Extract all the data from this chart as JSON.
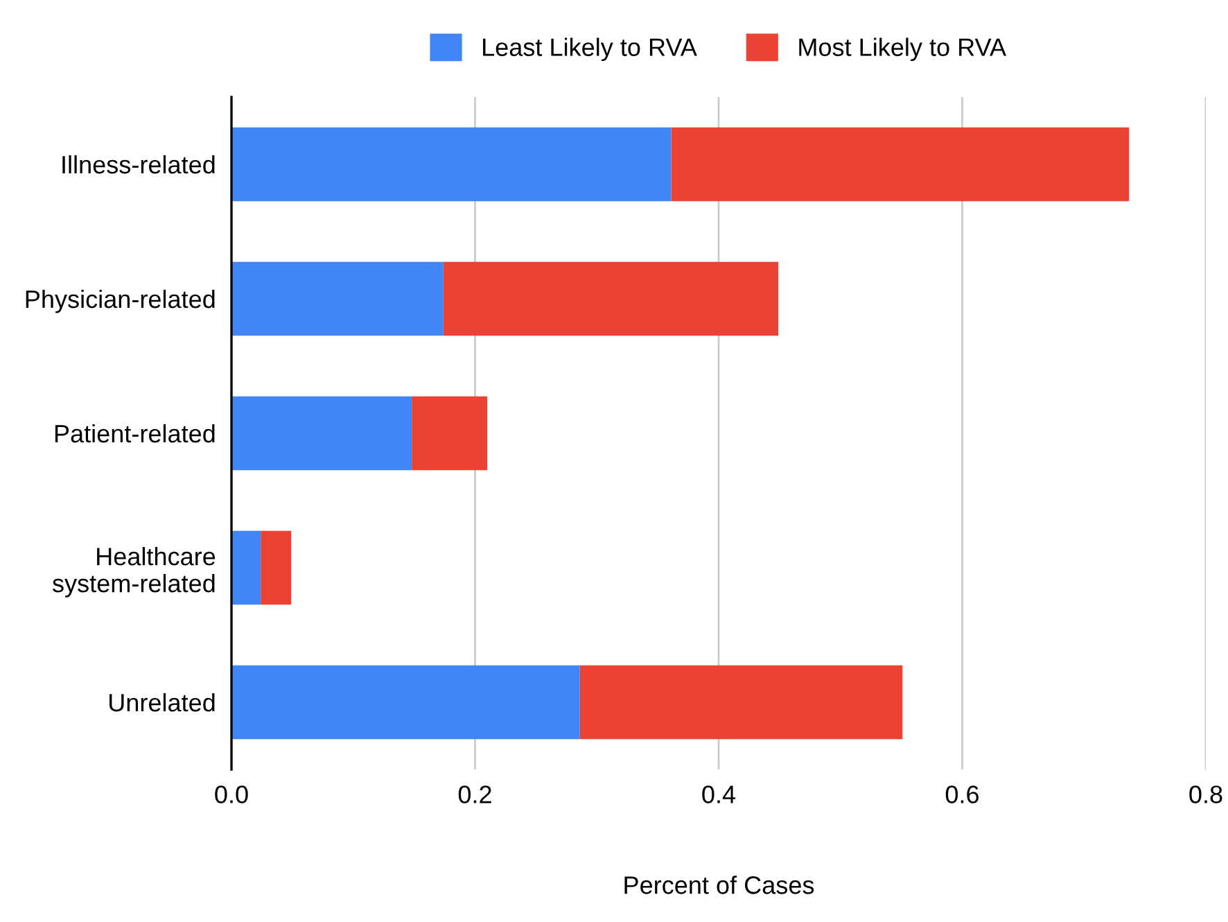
{
  "chart_data": {
    "type": "bar",
    "orientation": "horizontal",
    "stacked": true,
    "xlabel": "Percent of Cases",
    "categories": [
      "Illness-related",
      "Physician-related",
      "Patient-related",
      "Healthcare\nsystem-related",
      "Unrelated"
    ],
    "series": [
      {
        "name": "Least Likely to RVA",
        "color": "#4285f4",
        "values": [
          0.361,
          0.174,
          0.148,
          0.024,
          0.286
        ]
      },
      {
        "name": "Most Likely to RVA",
        "color": "#ea4335",
        "values": [
          0.376,
          0.275,
          0.062,
          0.025,
          0.265
        ]
      }
    ],
    "xlim": [
      0,
      0.8
    ],
    "xticks": [
      {
        "value": 0,
        "label": "0.0"
      },
      {
        "value": 0.2,
        "label": "0.2"
      },
      {
        "value": 0.4,
        "label": "0.4"
      },
      {
        "value": 0.6,
        "label": "0.6"
      },
      {
        "value": 0.8,
        "label": "0.8"
      }
    ],
    "grid": "x",
    "legend": "top"
  }
}
